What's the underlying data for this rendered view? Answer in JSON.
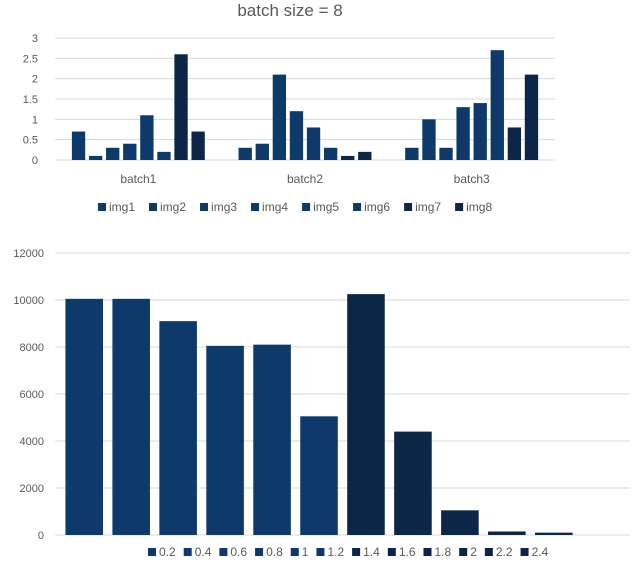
{
  "chart_data": [
    {
      "type": "bar",
      "title": "batch size = 8",
      "categories": [
        "batch1",
        "batch2",
        "batch3"
      ],
      "ylim": [
        0,
        3
      ],
      "yticks": [
        "0",
        "0.5",
        "1",
        "1.5",
        "2",
        "2.5",
        "3"
      ],
      "grid": true,
      "legend_position": "bottom",
      "series": [
        {
          "name": "img1",
          "values": [
            0.7,
            0.3,
            0.3
          ],
          "color": "#0d3a6a"
        },
        {
          "name": "img2",
          "values": [
            0.1,
            0.4,
            1.0
          ],
          "color": "#0d3a6a"
        },
        {
          "name": "img3",
          "values": [
            0.3,
            2.1,
            0.3
          ],
          "color": "#0d3a6a"
        },
        {
          "name": "img4",
          "values": [
            0.4,
            1.2,
            1.3
          ],
          "color": "#0d3a6a"
        },
        {
          "name": "img5",
          "values": [
            1.1,
            0.8,
            1.4
          ],
          "color": "#0d3a6a"
        },
        {
          "name": "img6",
          "values": [
            0.2,
            0.3,
            2.7
          ],
          "color": "#0d3a6a"
        },
        {
          "name": "img7",
          "values": [
            2.6,
            0.1,
            0.8
          ],
          "color": "#0c2647"
        },
        {
          "name": "img8",
          "values": [
            0.7,
            0.2,
            2.1
          ],
          "color": "#0c2647"
        }
      ]
    },
    {
      "type": "bar",
      "title": "",
      "categories": [
        ""
      ],
      "ylim": [
        0,
        12000
      ],
      "yticks": [
        "0",
        "2000",
        "4000",
        "6000",
        "8000",
        "10000",
        "12000"
      ],
      "grid": true,
      "legend_position": "bottom",
      "series": [
        {
          "name": "0.2",
          "values": [
            10050
          ],
          "color": "#0d3a6a"
        },
        {
          "name": "0.4",
          "values": [
            10050
          ],
          "color": "#0d3a6a"
        },
        {
          "name": "0.6",
          "values": [
            9100
          ],
          "color": "#0d3a6a"
        },
        {
          "name": "0.8",
          "values": [
            8050
          ],
          "color": "#0d3a6a"
        },
        {
          "name": "1",
          "values": [
            8100
          ],
          "color": "#0d3a6a"
        },
        {
          "name": "1.2",
          "values": [
            5050
          ],
          "color": "#0d3a6a"
        },
        {
          "name": "1.4",
          "values": [
            10250
          ],
          "color": "#0c2647"
        },
        {
          "name": "1.6",
          "values": [
            4400
          ],
          "color": "#0c2647"
        },
        {
          "name": "1.8",
          "values": [
            1050
          ],
          "color": "#0c2647"
        },
        {
          "name": "2",
          "values": [
            150
          ],
          "color": "#0c2647"
        },
        {
          "name": "2.2",
          "values": [
            100
          ],
          "color": "#0c2647"
        },
        {
          "name": "2.4",
          "values": [
            0
          ],
          "color": "#0c2647"
        }
      ]
    }
  ]
}
